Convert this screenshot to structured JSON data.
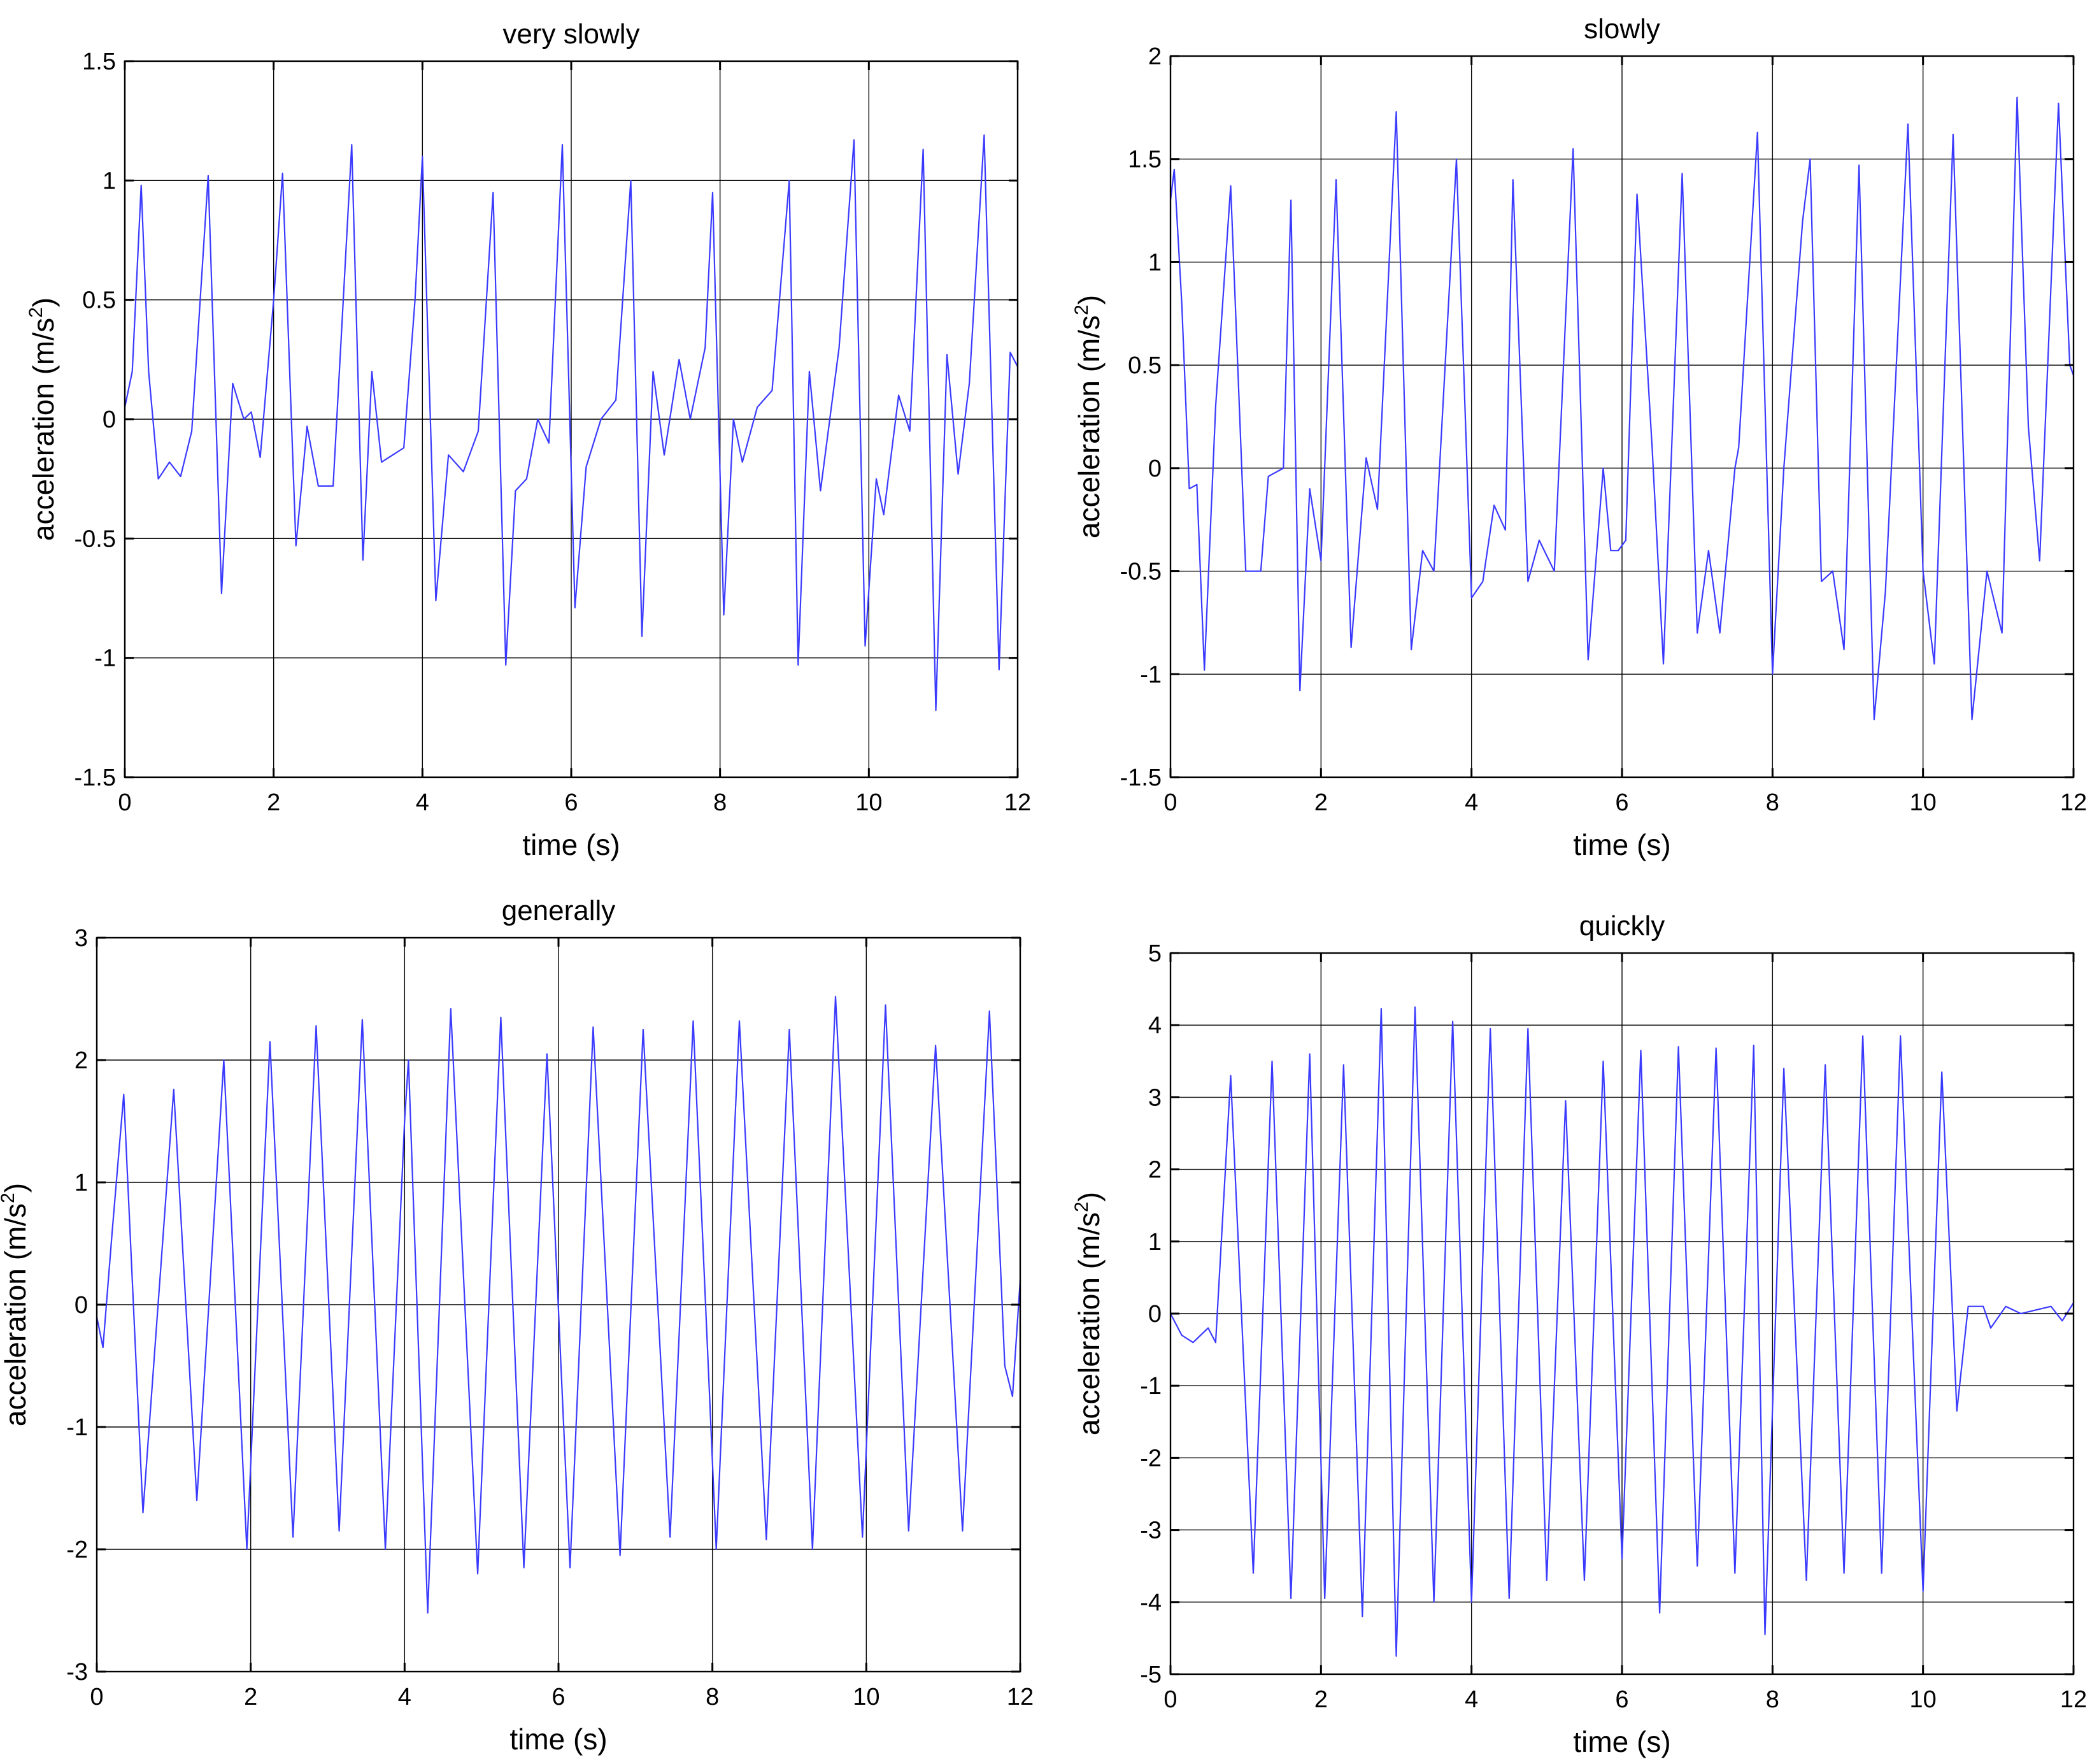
{
  "colors": {
    "line": "#3a3aff",
    "grid": "#000000",
    "axis": "#000000",
    "background": "#ffffff"
  },
  "chart_data": [
    {
      "type": "line",
      "title": "very slowly",
      "xlabel": "time (s)",
      "ylabel": "acceleration (m/s",
      "ylabel_sup": "2",
      "ylabel_close": ")",
      "xlim": [
        0,
        12
      ],
      "ylim": [
        -1.5,
        1.5
      ],
      "xticks": [
        0,
        2,
        4,
        6,
        8,
        10,
        12
      ],
      "yticks": [
        -1.5,
        -1,
        -0.5,
        0,
        0.5,
        1,
        1.5
      ],
      "grid": true,
      "series": [
        {
          "points": [
            [
              0,
              0.05
            ],
            [
              0.1,
              0.2
            ],
            [
              0.22,
              0.98
            ],
            [
              0.32,
              0.2
            ],
            [
              0.45,
              -0.25
            ],
            [
              0.6,
              -0.18
            ],
            [
              0.75,
              -0.24
            ],
            [
              0.9,
              -0.05
            ],
            [
              1.12,
              1.02
            ],
            [
              1.3,
              -0.73
            ],
            [
              1.45,
              0.15
            ],
            [
              1.6,
              0.0
            ],
            [
              1.7,
              0.03
            ],
            [
              1.82,
              -0.16
            ],
            [
              2.0,
              0.5
            ],
            [
              2.12,
              1.03
            ],
            [
              2.3,
              -0.53
            ],
            [
              2.45,
              -0.03
            ],
            [
              2.6,
              -0.28
            ],
            [
              2.8,
              -0.28
            ],
            [
              3.05,
              1.15
            ],
            [
              3.2,
              -0.59
            ],
            [
              3.32,
              0.2
            ],
            [
              3.45,
              -0.18
            ],
            [
              3.6,
              -0.15
            ],
            [
              3.75,
              -0.12
            ],
            [
              3.9,
              0.5
            ],
            [
              4.0,
              1.1
            ],
            [
              4.18,
              -0.76
            ],
            [
              4.35,
              -0.15
            ],
            [
              4.55,
              -0.22
            ],
            [
              4.75,
              -0.05
            ],
            [
              4.95,
              0.95
            ],
            [
              5.12,
              -1.03
            ],
            [
              5.25,
              -0.3
            ],
            [
              5.4,
              -0.25
            ],
            [
              5.55,
              0.0
            ],
            [
              5.7,
              -0.1
            ],
            [
              5.88,
              1.15
            ],
            [
              6.05,
              -0.79
            ],
            [
              6.2,
              -0.2
            ],
            [
              6.4,
              0.0
            ],
            [
              6.6,
              0.08
            ],
            [
              6.8,
              1.0
            ],
            [
              6.95,
              -0.91
            ],
            [
              7.1,
              0.2
            ],
            [
              7.25,
              -0.15
            ],
            [
              7.45,
              0.25
            ],
            [
              7.6,
              0.0
            ],
            [
              7.8,
              0.3
            ],
            [
              7.9,
              0.95
            ],
            [
              8.05,
              -0.82
            ],
            [
              8.18,
              0.0
            ],
            [
              8.3,
              -0.18
            ],
            [
              8.5,
              0.05
            ],
            [
              8.7,
              0.12
            ],
            [
              8.93,
              1.0
            ],
            [
              9.05,
              -1.03
            ],
            [
              9.2,
              0.2
            ],
            [
              9.35,
              -0.3
            ],
            [
              9.6,
              0.3
            ],
            [
              9.8,
              1.17
            ],
            [
              9.95,
              -0.95
            ],
            [
              10.1,
              -0.25
            ],
            [
              10.2,
              -0.4
            ],
            [
              10.4,
              0.1
            ],
            [
              10.55,
              -0.05
            ],
            [
              10.73,
              1.13
            ],
            [
              10.9,
              -1.22
            ],
            [
              11.05,
              0.27
            ],
            [
              11.2,
              -0.23
            ],
            [
              11.35,
              0.15
            ],
            [
              11.55,
              1.19
            ],
            [
              11.75,
              -1.05
            ],
            [
              11.9,
              0.28
            ],
            [
              12.0,
              0.22
            ]
          ]
        }
      ]
    },
    {
      "type": "line",
      "title": "slowly",
      "xlabel": "time (s)",
      "ylabel": "acceleration (m/s",
      "ylabel_sup": "2",
      "ylabel_close": ")",
      "xlim": [
        0,
        12
      ],
      "ylim": [
        -1.5,
        2
      ],
      "xticks": [
        0,
        2,
        4,
        6,
        8,
        10,
        12
      ],
      "yticks": [
        -1.5,
        -1,
        -0.5,
        0,
        0.5,
        1,
        1.5,
        2
      ],
      "grid": true,
      "series": [
        {
          "points": [
            [
              0,
              1.3
            ],
            [
              0.05,
              1.45
            ],
            [
              0.15,
              0.8
            ],
            [
              0.25,
              -0.1
            ],
            [
              0.35,
              -0.08
            ],
            [
              0.45,
              -0.98
            ],
            [
              0.6,
              0.3
            ],
            [
              0.8,
              1.37
            ],
            [
              1.0,
              -0.5
            ],
            [
              1.2,
              -0.5
            ],
            [
              1.3,
              -0.04
            ],
            [
              1.5,
              0.0
            ],
            [
              1.6,
              1.3
            ],
            [
              1.72,
              -1.08
            ],
            [
              1.85,
              -0.1
            ],
            [
              2.0,
              -0.45
            ],
            [
              2.2,
              1.4
            ],
            [
              2.4,
              -0.87
            ],
            [
              2.6,
              0.05
            ],
            [
              2.75,
              -0.2
            ],
            [
              3.0,
              1.73
            ],
            [
              3.2,
              -0.88
            ],
            [
              3.35,
              -0.4
            ],
            [
              3.5,
              -0.5
            ],
            [
              3.8,
              1.5
            ],
            [
              4.0,
              -0.63
            ],
            [
              4.15,
              -0.55
            ],
            [
              4.3,
              -0.18
            ],
            [
              4.45,
              -0.3
            ],
            [
              4.55,
              1.4
            ],
            [
              4.75,
              -0.55
            ],
            [
              4.9,
              -0.35
            ],
            [
              5.1,
              -0.5
            ],
            [
              5.35,
              1.55
            ],
            [
              5.55,
              -0.93
            ],
            [
              5.75,
              0.0
            ],
            [
              5.85,
              -0.4
            ],
            [
              5.95,
              -0.4
            ],
            [
              6.05,
              -0.35
            ],
            [
              6.2,
              1.33
            ],
            [
              6.4,
              0.1
            ],
            [
              6.55,
              -0.95
            ],
            [
              6.8,
              1.43
            ],
            [
              7.0,
              -0.8
            ],
            [
              7.15,
              -0.4
            ],
            [
              7.3,
              -0.8
            ],
            [
              7.5,
              0.0
            ],
            [
              7.55,
              0.1
            ],
            [
              7.8,
              1.63
            ],
            [
              8.0,
              -1.0
            ],
            [
              8.15,
              0.0
            ],
            [
              8.4,
              1.2
            ],
            [
              8.5,
              1.5
            ],
            [
              8.65,
              -0.55
            ],
            [
              8.8,
              -0.5
            ],
            [
              8.95,
              -0.88
            ],
            [
              9.15,
              1.47
            ],
            [
              9.35,
              -1.22
            ],
            [
              9.5,
              -0.6
            ],
            [
              9.8,
              1.67
            ],
            [
              10.0,
              -0.5
            ],
            [
              10.15,
              -0.95
            ],
            [
              10.4,
              1.62
            ],
            [
              10.65,
              -1.22
            ],
            [
              10.85,
              -0.5
            ],
            [
              11.05,
              -0.8
            ],
            [
              11.25,
              1.8
            ],
            [
              11.4,
              0.2
            ],
            [
              11.55,
              -0.45
            ],
            [
              11.8,
              1.77
            ],
            [
              11.95,
              0.5
            ],
            [
              12.0,
              0.45
            ]
          ]
        }
      ]
    },
    {
      "type": "line",
      "title": "generally",
      "xlabel": "time (s)",
      "ylabel": "acceleration (m/s",
      "ylabel_sup": "2",
      "ylabel_close": ")",
      "xlim": [
        0,
        12
      ],
      "ylim": [
        -3,
        3
      ],
      "xticks": [
        0,
        2,
        4,
        6,
        8,
        10,
        12
      ],
      "yticks": [
        -3,
        -2,
        -1,
        0,
        1,
        2,
        3
      ],
      "grid": true,
      "series": [
        {
          "points": [
            [
              0,
              -0.1
            ],
            [
              0.08,
              -0.35
            ],
            [
              0.2,
              0.6
            ],
            [
              0.35,
              1.72
            ],
            [
              0.6,
              -1.7
            ],
            [
              1.0,
              1.76
            ],
            [
              1.3,
              -1.6
            ],
            [
              1.65,
              2.0
            ],
            [
              1.95,
              -2.0
            ],
            [
              2.25,
              2.15
            ],
            [
              2.55,
              -1.9
            ],
            [
              2.85,
              2.28
            ],
            [
              3.15,
              -1.85
            ],
            [
              3.45,
              2.33
            ],
            [
              3.75,
              -2.0
            ],
            [
              4.0,
              1.5
            ],
            [
              4.05,
              2.0
            ],
            [
              4.3,
              -2.52
            ],
            [
              4.6,
              2.42
            ],
            [
              4.95,
              -2.2
            ],
            [
              5.25,
              2.35
            ],
            [
              5.55,
              -2.15
            ],
            [
              5.85,
              2.05
            ],
            [
              6.15,
              -2.15
            ],
            [
              6.45,
              2.27
            ],
            [
              6.8,
              -2.05
            ],
            [
              7.1,
              2.25
            ],
            [
              7.45,
              -1.9
            ],
            [
              7.75,
              2.32
            ],
            [
              8.05,
              -2.0
            ],
            [
              8.35,
              2.32
            ],
            [
              8.7,
              -1.92
            ],
            [
              9.0,
              2.25
            ],
            [
              9.3,
              -2.0
            ],
            [
              9.6,
              2.52
            ],
            [
              9.95,
              -1.9
            ],
            [
              10.25,
              2.45
            ],
            [
              10.55,
              -1.85
            ],
            [
              10.9,
              2.12
            ],
            [
              11.25,
              -1.85
            ],
            [
              11.6,
              2.4
            ],
            [
              11.8,
              -0.5
            ],
            [
              11.9,
              -0.75
            ],
            [
              12.0,
              0.2
            ]
          ]
        }
      ]
    },
    {
      "type": "line",
      "title": "quickly",
      "xlabel": "time (s)",
      "ylabel": "acceleration (m/s",
      "ylabel_sup": "2",
      "ylabel_close": ")",
      "xlim": [
        0,
        12
      ],
      "ylim": [
        -5,
        5
      ],
      "xticks": [
        0,
        2,
        4,
        6,
        8,
        10,
        12
      ],
      "yticks": [
        -5,
        -4,
        -3,
        -2,
        -1,
        0,
        1,
        2,
        3,
        4,
        5
      ],
      "grid": true,
      "series": [
        {
          "points": [
            [
              0,
              0.0
            ],
            [
              0.15,
              -0.3
            ],
            [
              0.3,
              -0.4
            ],
            [
              0.5,
              -0.2
            ],
            [
              0.6,
              -0.4
            ],
            [
              0.8,
              3.3
            ],
            [
              1.1,
              -3.6
            ],
            [
              1.35,
              3.5
            ],
            [
              1.6,
              -3.95
            ],
            [
              1.85,
              3.6
            ],
            [
              2.05,
              -3.95
            ],
            [
              2.3,
              3.45
            ],
            [
              2.55,
              -4.2
            ],
            [
              2.8,
              4.23
            ],
            [
              3.0,
              -4.75
            ],
            [
              3.25,
              4.25
            ],
            [
              3.5,
              -4.0
            ],
            [
              3.75,
              4.05
            ],
            [
              4.0,
              -4.0
            ],
            [
              4.25,
              3.95
            ],
            [
              4.5,
              -3.95
            ],
            [
              4.75,
              3.95
            ],
            [
              5.0,
              -3.7
            ],
            [
              5.25,
              2.95
            ],
            [
              5.5,
              -3.7
            ],
            [
              5.75,
              3.5
            ],
            [
              6.0,
              -3.4
            ],
            [
              6.25,
              3.65
            ],
            [
              6.5,
              -4.15
            ],
            [
              6.75,
              3.7
            ],
            [
              7.0,
              -3.5
            ],
            [
              7.25,
              3.68
            ],
            [
              7.5,
              -3.6
            ],
            [
              7.75,
              3.72
            ],
            [
              7.9,
              -4.45
            ],
            [
              8.15,
              3.4
            ],
            [
              8.45,
              -3.7
            ],
            [
              8.7,
              3.45
            ],
            [
              8.95,
              -3.6
            ],
            [
              9.2,
              3.85
            ],
            [
              9.45,
              -3.6
            ],
            [
              9.7,
              3.85
            ],
            [
              10.0,
              -3.85
            ],
            [
              10.25,
              3.35
            ],
            [
              10.45,
              -1.35
            ],
            [
              10.6,
              0.1
            ],
            [
              10.8,
              0.1
            ],
            [
              10.9,
              -0.2
            ],
            [
              11.1,
              0.1
            ],
            [
              11.3,
              0.0
            ],
            [
              11.5,
              0.05
            ],
            [
              11.7,
              0.1
            ],
            [
              11.85,
              -0.1
            ],
            [
              12.0,
              0.15
            ]
          ]
        }
      ]
    }
  ]
}
